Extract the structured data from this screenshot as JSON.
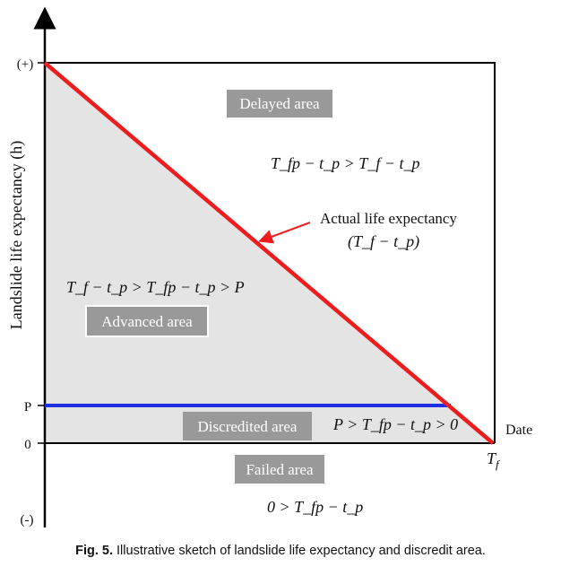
{
  "diagram": {
    "y_axis_label": "Landslide life expectancy (h)",
    "y_ticks": {
      "plus": "(+)",
      "p": "P",
      "zero": "0",
      "minus": "(-)"
    },
    "x_axis_label": "Date",
    "x_tick_tf": "T",
    "x_tick_tf_sub": "f",
    "areas": {
      "delayed": "Delayed area",
      "advanced": "Advanced area",
      "discredited": "Discredited area",
      "failed": "Failed area"
    },
    "expressions": {
      "delayed": "T_fp − t_p > T_f − t_p",
      "advanced": "T_f − t_p > T_fp − t_p > P",
      "discredited": "P > T_fp − t_p > 0",
      "failed": "0 > T_fp − t_p"
    },
    "annotation": {
      "line1": "Actual life expectancy",
      "line2": "(T_f − t_p)"
    },
    "colors": {
      "actual_line": "#ee1c1c",
      "p_line": "#1f2fe0",
      "shaded": "#e4e4e4",
      "label_box": "#999999"
    }
  },
  "caption": {
    "label": "Fig. 5.",
    "text": "Illustrative sketch of landslide life expectancy and discredit area."
  }
}
